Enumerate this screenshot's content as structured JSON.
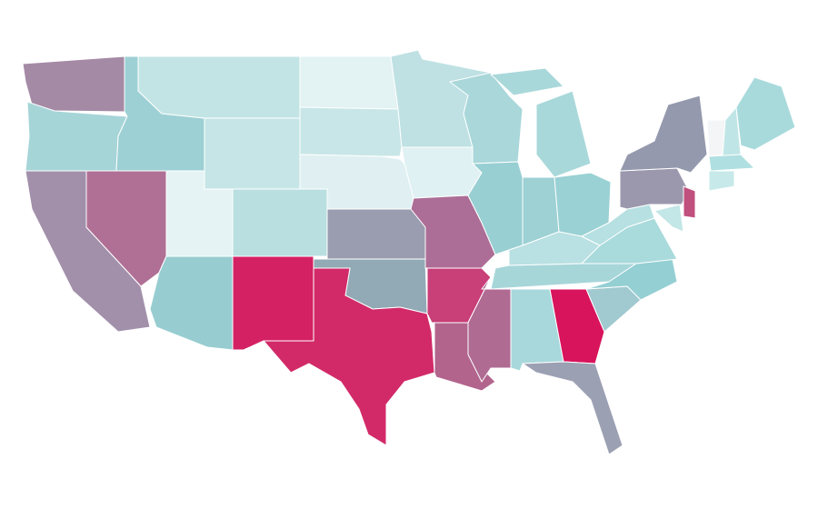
{
  "map": {
    "regions": [
      {
        "color": "#a58aa5"
      },
      {
        "color": "#a6d5d8"
      },
      {
        "color": "#9dd0d4"
      },
      {
        "color": "#c3e4e5"
      },
      {
        "color": "#c6e5e6"
      },
      {
        "color": "#e3f2f3"
      },
      {
        "color": "#c8e6e7"
      },
      {
        "color": "#e0f0f2"
      },
      {
        "color": "#b9dfe0"
      },
      {
        "color": "#e5f3f4"
      },
      {
        "color": "#b07095"
      },
      {
        "color": "#a290ab"
      },
      {
        "color": "#97cdd0"
      },
      {
        "color": "#d42163"
      },
      {
        "color": "#9a9caf"
      },
      {
        "color": "#92aab6"
      },
      {
        "color": "#d22a68"
      },
      {
        "color": "#bfe1e3"
      },
      {
        "color": "#e0f1f3"
      },
      {
        "color": "#ac6e96"
      },
      {
        "color": "#c93f78"
      },
      {
        "color": "#b2648d"
      },
      {
        "color": "#a9d7da"
      },
      {
        "color": "#98cfd3"
      },
      {
        "color": "#a9d8da"
      },
      {
        "color": "#9dd1d4"
      },
      {
        "color": "#9ad1d4"
      },
      {
        "color": "#b9e0e2"
      },
      {
        "color": "#a7d6d9"
      },
      {
        "color": "#b06b93"
      },
      {
        "color": "#a8d8db"
      },
      {
        "color": "#d8145c"
      },
      {
        "color": "#9ba0b3"
      },
      {
        "color": "#a0c9d0"
      },
      {
        "color": "#94cfd3"
      },
      {
        "color": "#a9dadc"
      },
      {
        "color": "#b6e0e2"
      },
      {
        "color": "#9b98ae"
      },
      {
        "color": "#9599ad"
      },
      {
        "color": "#c0507e"
      },
      {
        "color": "#c3e6e7"
      },
      {
        "color": "#f3f5f6"
      },
      {
        "color": "#c0e5e6"
      },
      {
        "color": "#a8dadc"
      },
      {
        "color": "#b0dfe1"
      },
      {
        "color": "#c7e9ea"
      }
    ]
  }
}
